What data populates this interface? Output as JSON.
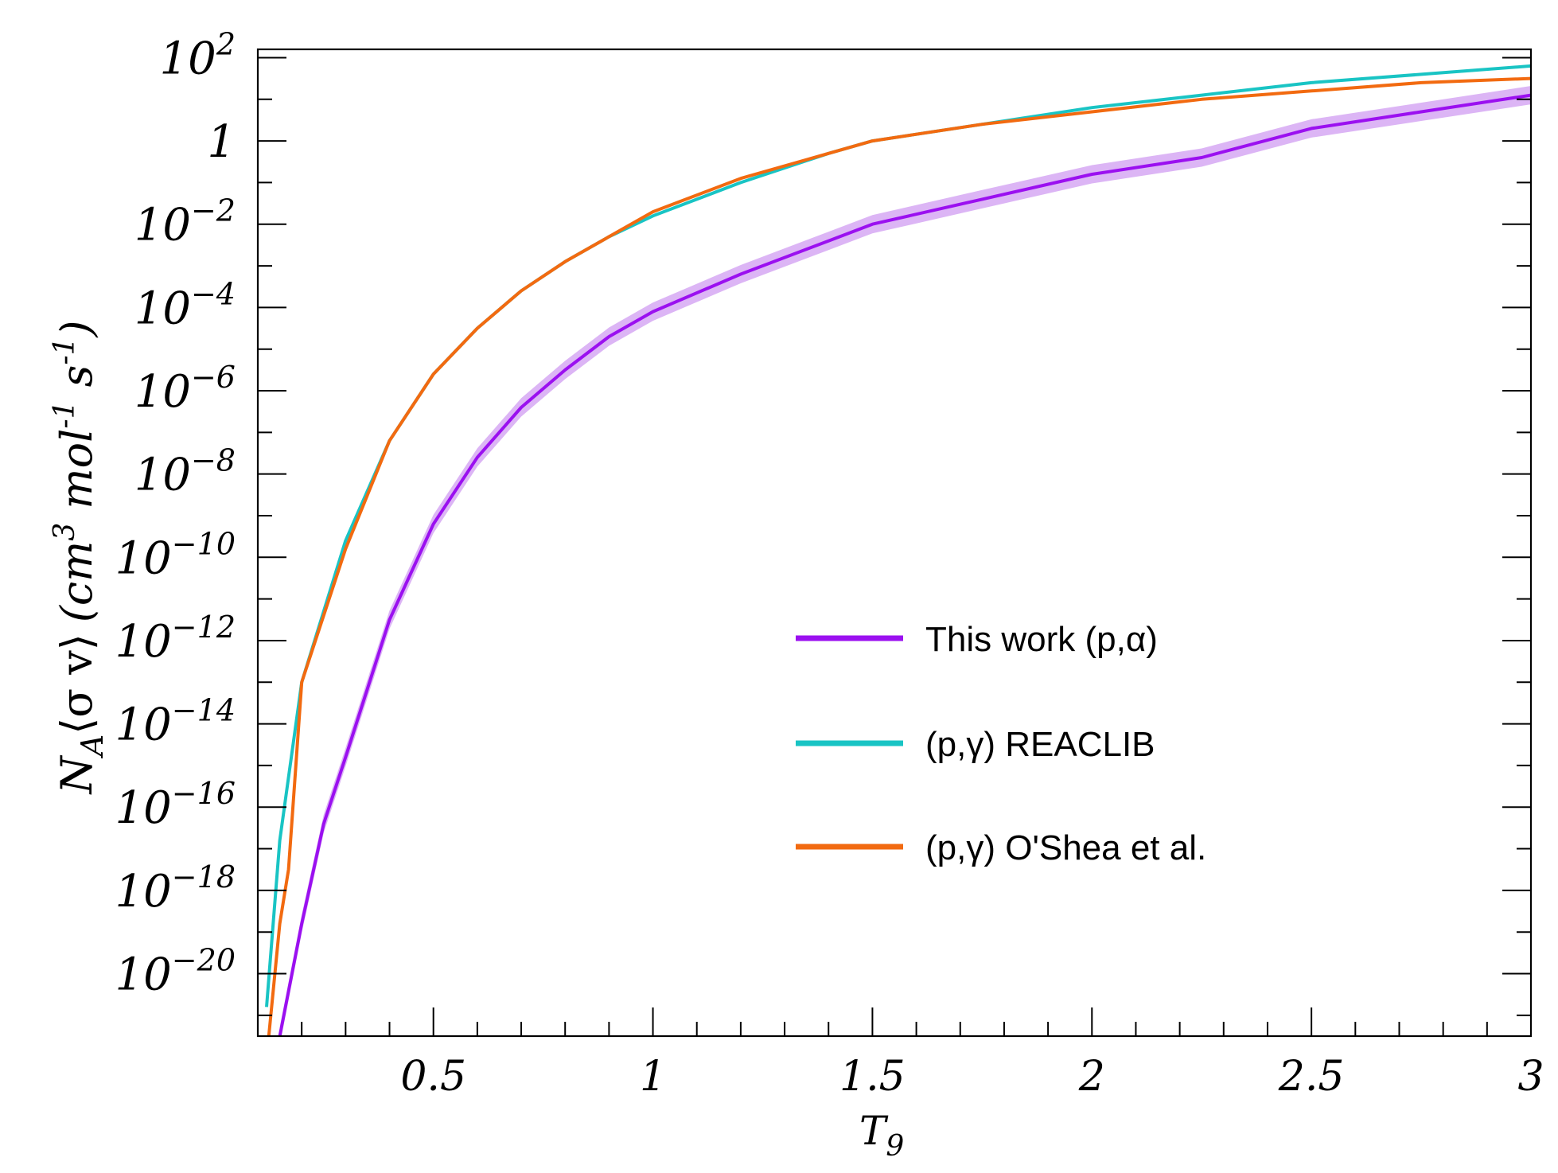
{
  "chart_data": {
    "type": "line",
    "xlabel_main": "T",
    "xlabel_sub": "9",
    "ylabel": {
      "N": "N",
      "A": "A",
      "sigma_v": "⟨σ v⟩",
      "unit_open": "(cm",
      "exp3": "3",
      "mol": " mol",
      "exp_neg1": "-1",
      "s": " s",
      "close": ")"
    },
    "xlim": [
      0.1,
      3.0
    ],
    "ylim_log10": [
      -21.5,
      2.2
    ],
    "y_scale": "log",
    "x_ticks": [
      {
        "value": 0.5,
        "label": "0.5"
      },
      {
        "value": 1.0,
        "label": "1"
      },
      {
        "value": 1.5,
        "label": "1.5"
      },
      {
        "value": 2.0,
        "label": "2"
      },
      {
        "value": 2.5,
        "label": "2.5"
      },
      {
        "value": 3.0,
        "label": "3"
      }
    ],
    "y_ticks": [
      {
        "exp": 2,
        "base": "10",
        "sup": "2"
      },
      {
        "exp": 0,
        "base": "1",
        "sup": ""
      },
      {
        "exp": -2,
        "base": "10",
        "sup": "−2"
      },
      {
        "exp": -4,
        "base": "10",
        "sup": "−4"
      },
      {
        "exp": -6,
        "base": "10",
        "sup": "−6"
      },
      {
        "exp": -8,
        "base": "10",
        "sup": "−8"
      },
      {
        "exp": -10,
        "base": "10",
        "sup": "−10"
      },
      {
        "exp": -12,
        "base": "10",
        "sup": "−12"
      },
      {
        "exp": -14,
        "base": "10",
        "sup": "−14"
      },
      {
        "exp": -16,
        "base": "10",
        "sup": "−16"
      },
      {
        "exp": -18,
        "base": "10",
        "sup": "−18"
      },
      {
        "exp": -20,
        "base": "10",
        "sup": "−20"
      }
    ],
    "legend_position": "right-center",
    "series": [
      {
        "name": "This work (p,α)",
        "color": "#9b10f0",
        "band_color": "#dcb5f5",
        "band_log10_halfwidth": 0.22,
        "x": [
          0.15,
          0.2,
          0.25,
          0.3,
          0.4,
          0.5,
          0.6,
          0.7,
          0.8,
          0.9,
          1.0,
          1.2,
          1.4,
          1.5,
          1.75,
          2.0,
          2.25,
          2.5,
          2.75,
          3.0
        ],
        "log10_y": [
          -21.5,
          -18.8,
          -16.4,
          -14.8,
          -11.5,
          -9.2,
          -7.6,
          -6.4,
          -5.5,
          -4.7,
          -4.1,
          -3.2,
          -2.4,
          -2.0,
          -1.4,
          -0.8,
          -0.4,
          0.3,
          0.7,
          1.1
        ]
      },
      {
        "name": "(p,γ) REACLIB",
        "color": "#19c4c4",
        "x": [
          0.12,
          0.15,
          0.2,
          0.3,
          0.4,
          0.5,
          0.6,
          0.7,
          0.8,
          0.9,
          1.0,
          1.2,
          1.4,
          1.5,
          1.75,
          2.0,
          2.25,
          2.5,
          2.75,
          3.0
        ],
        "log10_y": [
          -20.8,
          -16.8,
          -13.0,
          -9.6,
          -7.2,
          -5.6,
          -4.5,
          -3.6,
          -2.9,
          -2.3,
          -1.8,
          -1.0,
          -0.3,
          0.0,
          0.4,
          0.8,
          1.1,
          1.4,
          1.6,
          1.8
        ]
      },
      {
        "name": "(p,γ) O'Shea et al.",
        "color": "#f26a10",
        "x": [
          0.125,
          0.15,
          0.17,
          0.2,
          0.3,
          0.4,
          0.5,
          0.6,
          0.7,
          0.8,
          0.9,
          1.0,
          1.2,
          1.4,
          1.5,
          1.75,
          2.0,
          2.25,
          2.5,
          2.75,
          3.0
        ],
        "log10_y": [
          -21.5,
          -18.8,
          -17.5,
          -13.0,
          -9.8,
          -7.2,
          -5.6,
          -4.5,
          -3.6,
          -2.9,
          -2.3,
          -1.7,
          -0.9,
          -0.3,
          0.0,
          0.4,
          0.7,
          1.0,
          1.2,
          1.4,
          1.5
        ]
      }
    ]
  }
}
